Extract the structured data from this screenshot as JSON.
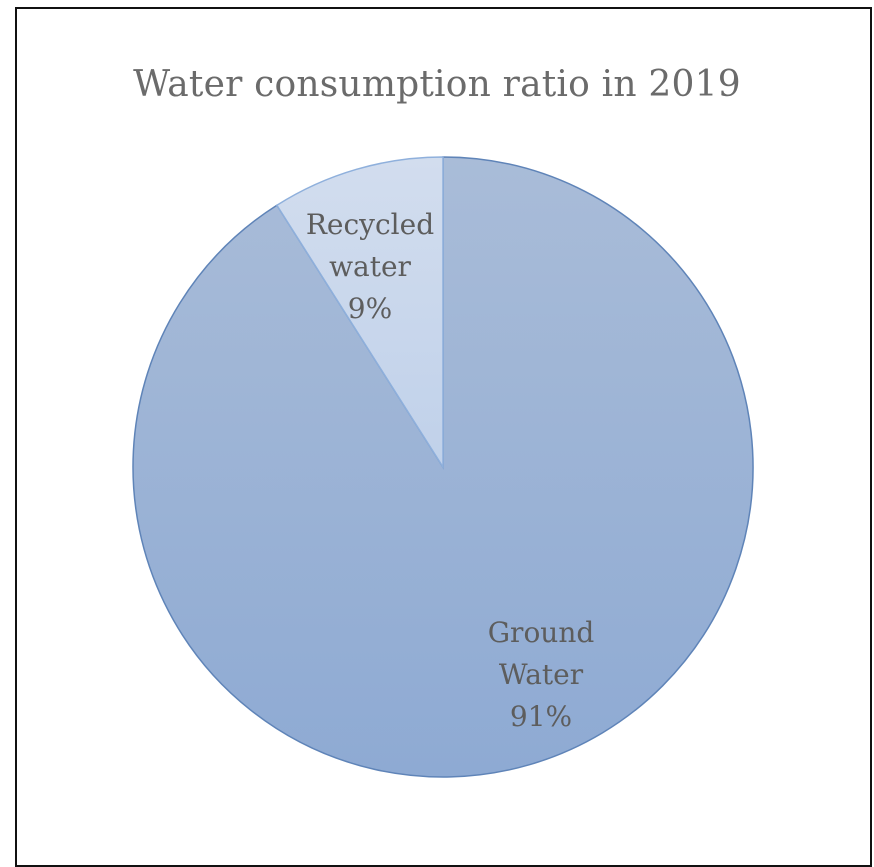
{
  "chart_data": {
    "type": "pie",
    "title": "Water consumption ratio in 2019",
    "slices": [
      {
        "name": "Ground Water",
        "label_lines": [
          "Ground",
          "Water"
        ],
        "value": 91,
        "value_label": "91%",
        "color": "#96b0d6"
      },
      {
        "name": "Recycled water",
        "label_lines": [
          "Recycled",
          "water"
        ],
        "value": 9,
        "value_label": "9%",
        "color": "#c5d5ec"
      }
    ],
    "legend": "none",
    "start": "12 o'clock",
    "direction": "clockwise"
  },
  "colors": {
    "border": "#111111",
    "slice_stroke": "#5f84b8",
    "label_text": "#5d5d5d",
    "title_text": "#6b6b6b"
  }
}
